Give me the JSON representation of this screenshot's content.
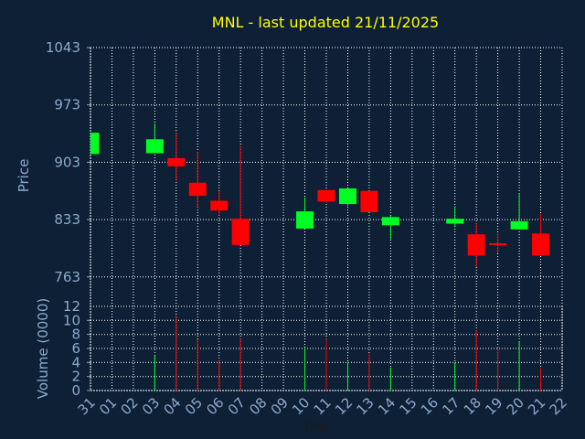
{
  "chart_data": {
    "type": "candlestick",
    "title": "MNL - last updated 21/11/2025",
    "xlabel": "Day",
    "x_ticks": [
      "31",
      "01",
      "02",
      "03",
      "04",
      "05",
      "06",
      "07",
      "08",
      "09",
      "10",
      "11",
      "12",
      "13",
      "14",
      "15",
      "16",
      "17",
      "18",
      "19",
      "20",
      "21",
      "22"
    ],
    "price_panel": {
      "ylabel": "Price",
      "yticks": [
        1043,
        973,
        903,
        833,
        763
      ],
      "ylim": [
        727,
        1043
      ],
      "grid": true
    },
    "volume_panel": {
      "ylabel": "Volume (0000)",
      "yticks": [
        0,
        2,
        4,
        6,
        8,
        10
      ],
      "top_label": "12",
      "ylim": [
        0,
        12
      ],
      "grid": true
    },
    "candles": [
      {
        "day": "31",
        "open": 913,
        "high": 939,
        "low": 913,
        "close": 939,
        "volume": 0
      },
      {
        "day": "03",
        "open": 914,
        "high": 950,
        "low": 914,
        "close": 931,
        "volume": 5
      },
      {
        "day": "04",
        "open": 908,
        "high": 940,
        "low": 880,
        "close": 898,
        "volume": 10.5
      },
      {
        "day": "05",
        "open": 878,
        "high": 916,
        "low": 848,
        "close": 862,
        "volume": 7.3
      },
      {
        "day": "06",
        "open": 856,
        "high": 868,
        "low": 838,
        "close": 844,
        "volume": 4.3
      },
      {
        "day": "07",
        "open": 834,
        "high": 923,
        "low": 802,
        "close": 802,
        "volume": 7.4
      },
      {
        "day": "10",
        "open": 822,
        "high": 860,
        "low": 822,
        "close": 843,
        "volume": 6.1
      },
      {
        "day": "11",
        "open": 869,
        "high": 869,
        "low": 853,
        "close": 855,
        "volume": 7.4
      },
      {
        "day": "12",
        "open": 852,
        "high": 871,
        "low": 850,
        "close": 871,
        "volume": 4
      },
      {
        "day": "13",
        "open": 868,
        "high": 868,
        "low": 842,
        "close": 842,
        "volume": 5.3
      },
      {
        "day": "14",
        "open": 826,
        "high": 838,
        "low": 809,
        "close": 836,
        "volume": 3.3
      },
      {
        "day": "17",
        "open": 828,
        "high": 849,
        "low": 824,
        "close": 834,
        "volume": 4
      },
      {
        "day": "18",
        "open": 815,
        "high": 829,
        "low": 775,
        "close": 789,
        "volume": 8.6
      },
      {
        "day": "19",
        "open": 804,
        "high": 816,
        "low": 792,
        "close": 803,
        "volume": 6.2
      },
      {
        "day": "20",
        "open": 821,
        "high": 865,
        "low": 821,
        "close": 831,
        "volume": 7
      },
      {
        "day": "21",
        "open": 816,
        "high": 840,
        "low": 789,
        "close": 789,
        "volume": 3.2
      }
    ],
    "colors": {
      "background": "#0e2035",
      "grid": "#ffffff",
      "up": "#00ff22",
      "down": "#ff0000",
      "title": "#ffff00",
      "axis_text": "#8ca9cc",
      "day_text": "#1a1a1a"
    }
  }
}
